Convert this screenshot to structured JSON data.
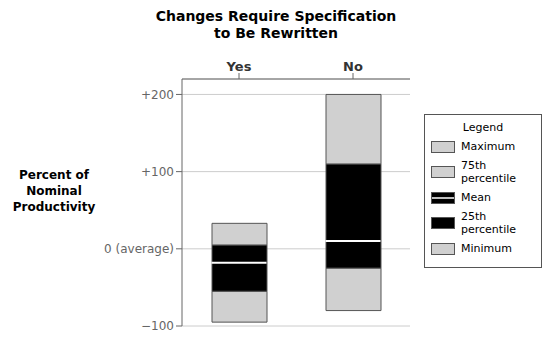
{
  "chart_data": {
    "type": "box",
    "title": "Changes Require Specification\nto Be Rewritten",
    "ylabel": "Percent of\nNominal\nProductivity",
    "categories": [
      "Yes",
      "No"
    ],
    "series": [
      {
        "name": "Maximum",
        "values": [
          33,
          200
        ],
        "color": "#d0d0d0"
      },
      {
        "name": "75th percentile",
        "values": [
          5,
          110
        ],
        "color": "#d0d0d0"
      },
      {
        "name": "Mean",
        "values": [
          -18,
          10
        ],
        "color": "#ffffff"
      },
      {
        "name": "25th percentile",
        "values": [
          -55,
          -25
        ],
        "color": "#000000"
      },
      {
        "name": "Minimum",
        "values": [
          -95,
          -80
        ],
        "color": "#d0d0d0"
      }
    ],
    "ylim": [
      -100,
      220
    ],
    "yticks": [
      {
        "value": -100,
        "label": "−100"
      },
      {
        "value": 0,
        "label": "0 (average)"
      },
      {
        "value": 100,
        "label": "+100"
      },
      {
        "value": 200,
        "label": "+200"
      }
    ],
    "grid": true,
    "legend": "right",
    "legend_title": "Legend"
  }
}
